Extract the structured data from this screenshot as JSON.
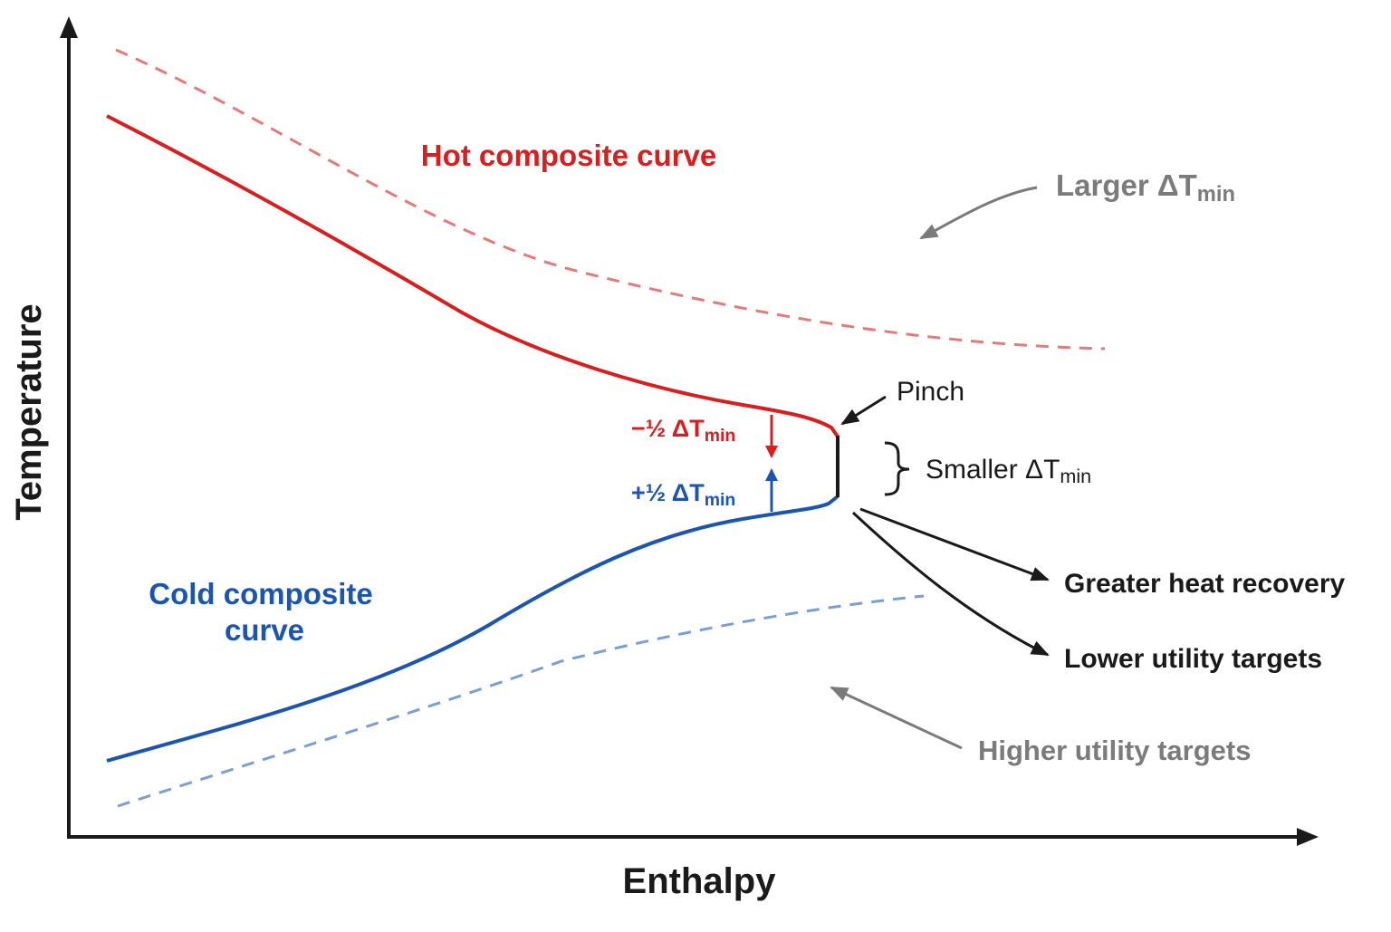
{
  "axes": {
    "x_label": "Enthalpy",
    "y_label": "Temperature"
  },
  "curves": {
    "hot_label": "Hot composite curve",
    "cold_label_line1": "Cold composite",
    "cold_label_line2": "curve"
  },
  "annotations": {
    "larger_dt_main": "Larger ΔT",
    "larger_dt_sub": "min",
    "pinch": "Pinch",
    "smaller_dt_main": "Smaller ΔT",
    "smaller_dt_sub": "min",
    "minus_half_main": "−½ ΔT",
    "minus_half_sub": "min",
    "plus_half_main": "+½ ΔT",
    "plus_half_sub": "min",
    "greater_heat_recovery": "Greater heat recovery",
    "lower_utility_targets": "Lower utility targets",
    "higher_utility_targets": "Higher utility targets"
  },
  "colors": {
    "hot": "#d81e1e",
    "hot_dashed": "#e57a7a",
    "cold": "#1b55b3",
    "cold_dashed": "#7a9fd3",
    "gray": "#7b7b7b",
    "axis": "#1a1a1a"
  }
}
